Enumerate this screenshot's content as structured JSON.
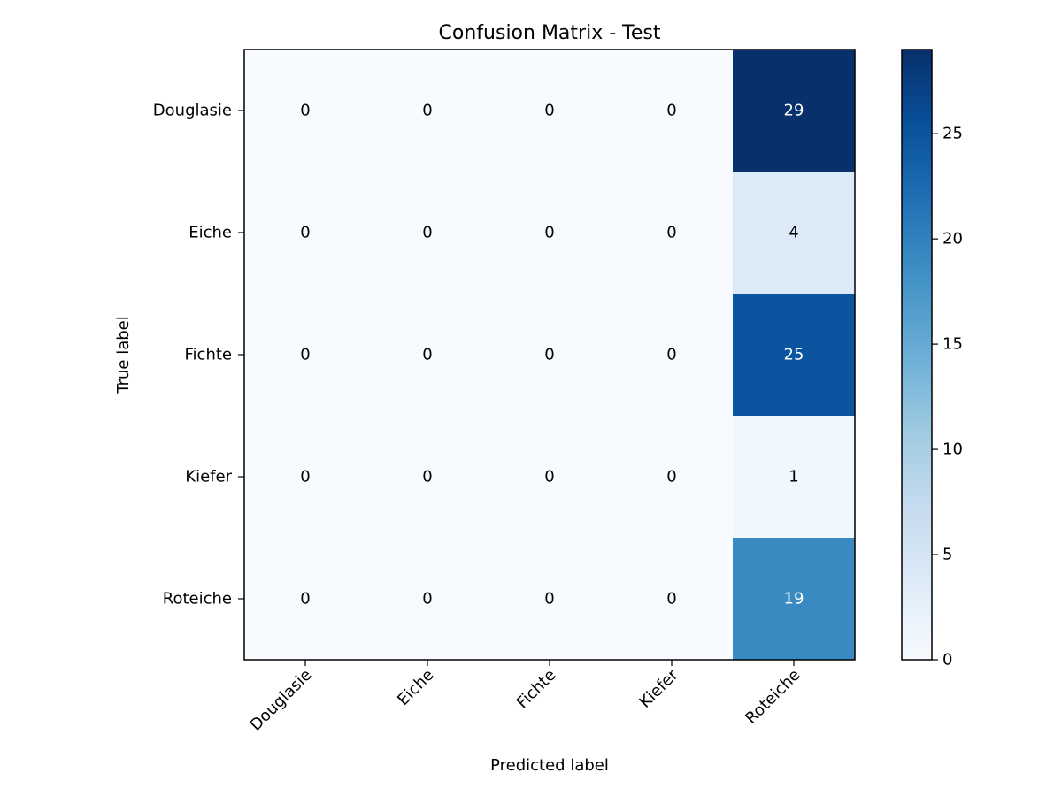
{
  "chart_data": {
    "type": "heatmap",
    "title": "Confusion Matrix - Test",
    "xlabel": "Predicted label",
    "ylabel": "True label",
    "x_categories": [
      "Douglasie",
      "Eiche",
      "Fichte",
      "Kiefer",
      "Roteiche"
    ],
    "y_categories": [
      "Douglasie",
      "Eiche",
      "Fichte",
      "Kiefer",
      "Roteiche"
    ],
    "values": [
      [
        0,
        0,
        0,
        0,
        29
      ],
      [
        0,
        0,
        0,
        0,
        4
      ],
      [
        0,
        0,
        0,
        0,
        25
      ],
      [
        0,
        0,
        0,
        0,
        1
      ],
      [
        0,
        0,
        0,
        0,
        19
      ]
    ],
    "colormap": "Blues",
    "colorbar": {
      "min": 0,
      "max": 29,
      "ticks": [
        0,
        5,
        10,
        15,
        20,
        25
      ]
    },
    "text_colors": {
      "dark": "#000000",
      "light": "#ffffff"
    }
  }
}
